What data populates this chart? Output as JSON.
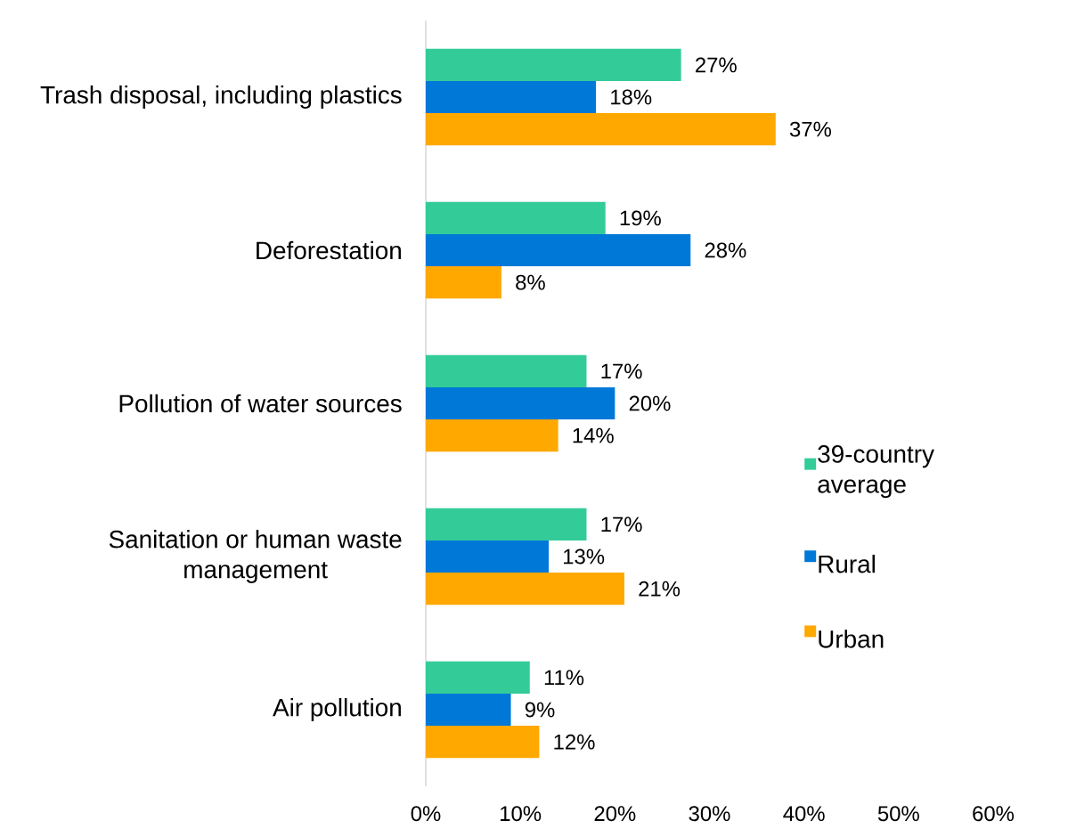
{
  "chart_data": {
    "type": "bar",
    "orientation": "horizontal",
    "categories": [
      "Trash disposal, including plastics",
      "Deforestation",
      "Pollution of water sources",
      "Sanitation or human waste management",
      "Air pollution"
    ],
    "series": [
      {
        "name": "39-country average",
        "color": "#33cc99",
        "values": [
          27,
          19,
          17,
          17,
          11
        ],
        "value_labels": [
          "27%",
          "19%",
          "17%",
          "17%",
          "11%"
        ]
      },
      {
        "name": "Rural",
        "color": "#0078d7",
        "values": [
          18,
          28,
          20,
          13,
          9
        ],
        "value_labels": [
          "18%",
          "28%",
          "20%",
          "13%",
          "9%"
        ]
      },
      {
        "name": "Urban",
        "color": "#ffa800",
        "values": [
          37,
          8,
          14,
          21,
          12
        ],
        "value_labels": [
          "37%",
          "8%",
          "14%",
          "21%",
          "12%"
        ]
      }
    ],
    "xlim": [
      0,
      60
    ],
    "xticks": [
      {
        "value": 0,
        "label": "0%"
      },
      {
        "value": 10,
        "label": "10%"
      },
      {
        "value": 20,
        "label": "20%"
      },
      {
        "value": 30,
        "label": "30%"
      },
      {
        "value": 40,
        "label": "40%"
      },
      {
        "value": 50,
        "label": "50%"
      },
      {
        "value": 60,
        "label": "60%"
      }
    ],
    "legend": "right"
  }
}
